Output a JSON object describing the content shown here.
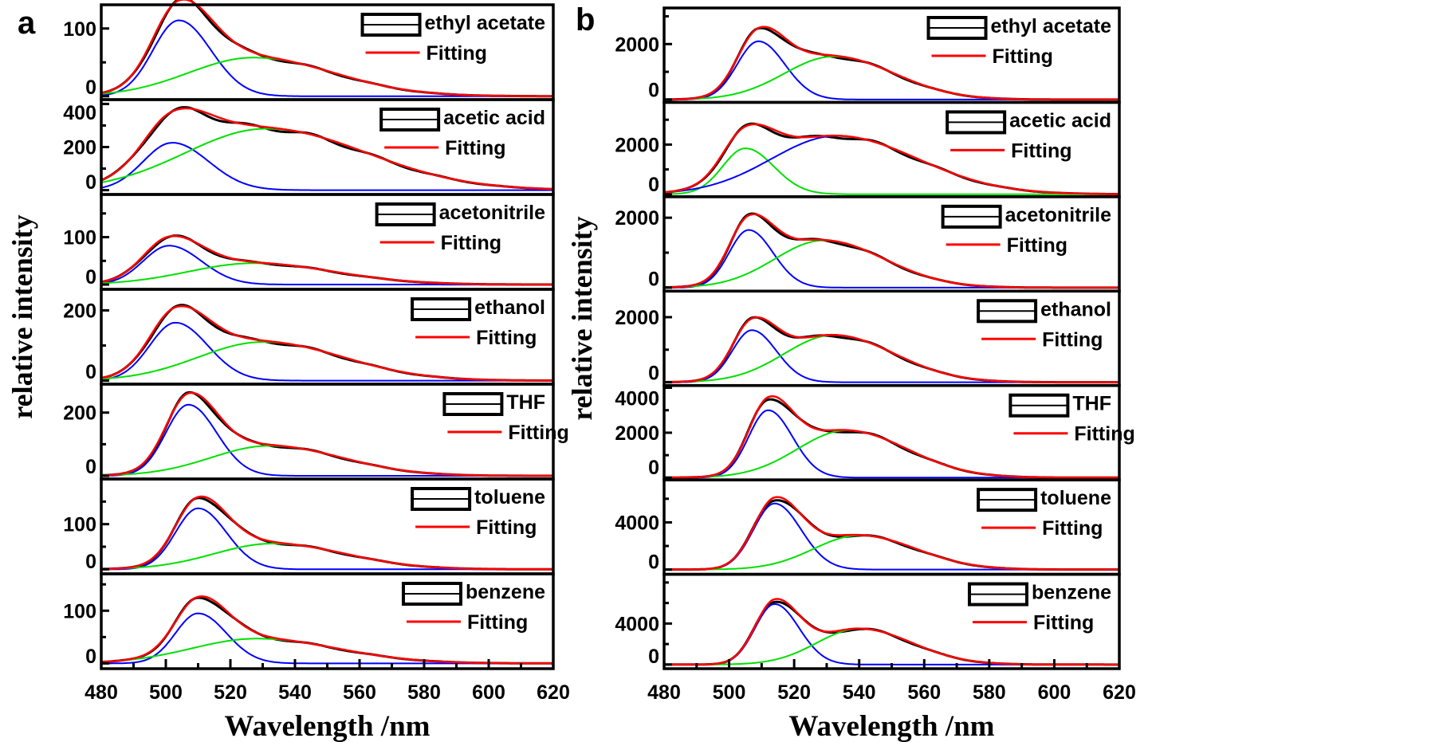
{
  "chart_data": [
    {
      "type": "line",
      "panel_label": "a",
      "xlabel": "Wavelength /nm",
      "ylabel": "relative intensity",
      "xlim": [
        480,
        620
      ],
      "xticks": [
        "480",
        "500",
        "520",
        "540",
        "560",
        "580",
        "600",
        "620"
      ],
      "colors": {
        "data": "#000000",
        "fit": "#ff0000",
        "peak1": "#0000ff",
        "peak2": "#00e000"
      },
      "fit_label": "Fitting",
      "subplots": [
        {
          "name": "ethyl acetate",
          "ylim": [
            -5,
            135
          ],
          "yticks": [
            0,
            100
          ],
          "ytick_labels": [
            "0",
            "100"
          ],
          "peak1": {
            "color": "blue",
            "center": 504,
            "amp": 112,
            "width": 8
          },
          "peak2": {
            "color": "green",
            "center": 527,
            "amp": 57,
            "width": 20
          }
        },
        {
          "name": "acetic acid",
          "ylim": [
            -20,
            420
          ],
          "yticks": [
            0,
            200,
            400
          ],
          "ytick_labels": [
            "0",
            "200",
            "400"
          ],
          "peak1": {
            "color": "blue",
            "center": 502,
            "amp": 220,
            "width": 9
          },
          "peak2": {
            "color": "green",
            "center": 531,
            "amp": 285,
            "width": 25
          }
        },
        {
          "name": "acetonitrile",
          "ylim": [
            -10,
            190
          ],
          "yticks": [
            0,
            100
          ],
          "ytick_labels": [
            "0",
            "100"
          ],
          "peak1": {
            "color": "blue",
            "center": 501,
            "amp": 82,
            "width": 8
          },
          "peak2": {
            "color": "green",
            "center": 527,
            "amp": 45,
            "width": 20
          }
        },
        {
          "name": "ethanol",
          "ylim": [
            -10,
            260
          ],
          "yticks": [
            0,
            200
          ],
          "ytick_labels": [
            "0",
            "200"
          ],
          "peak1": {
            "color": "blue",
            "center": 503,
            "amp": 165,
            "width": 8
          },
          "peak2": {
            "color": "green",
            "center": 530,
            "amp": 110,
            "width": 20
          }
        },
        {
          "name": "THF",
          "ylim": [
            -10,
            290
          ],
          "yticks": [
            0,
            200
          ],
          "ytick_labels": [
            "0",
            "200"
          ],
          "peak1": {
            "color": "blue",
            "center": 507,
            "amp": 225,
            "width": 7
          },
          "peak2": {
            "color": "green",
            "center": 532,
            "amp": 95,
            "width": 18
          }
        },
        {
          "name": "toluene",
          "ylim": [
            -10,
            200
          ],
          "yticks": [
            0,
            100
          ],
          "ytick_labels": [
            "0",
            "100"
          ],
          "peak1": {
            "color": "blue",
            "center": 510,
            "amp": 135,
            "width": 7
          },
          "peak2": {
            "color": "green",
            "center": 533,
            "amp": 57,
            "width": 18
          }
        },
        {
          "name": "benzene",
          "ylim": [
            -10,
            170
          ],
          "yticks": [
            0,
            100
          ],
          "ytick_labels": [
            "0",
            "100"
          ],
          "peak1": {
            "color": "blue",
            "center": 510,
            "amp": 95,
            "width": 7
          },
          "peak2": {
            "color": "green",
            "center": 528,
            "amp": 47,
            "width": 20
          }
        }
      ]
    },
    {
      "type": "line",
      "panel_label": "b",
      "xlabel": "Wavelength /nm",
      "ylabel": "relative intensity",
      "xlim": [
        480,
        620
      ],
      "xticks": [
        "480",
        "500",
        "520",
        "540",
        "560",
        "580",
        "600",
        "620"
      ],
      "colors": {
        "data": "#000000",
        "fit": "#ff0000",
        "peak1": "#0000ff",
        "peak2": "#00e000"
      },
      "fit_label": "Fitting",
      "subplots": [
        {
          "name": "ethyl acetate",
          "ylim": [
            -100,
            3300
          ],
          "yticks": [
            0,
            2000
          ],
          "ytick_labels": [
            "0",
            "2000"
          ],
          "peak1": {
            "color": "blue",
            "center": 509,
            "amp": 2100,
            "width": 6.5
          },
          "peak2": {
            "color": "green",
            "center": 532,
            "amp": 1550,
            "width": 15
          }
        },
        {
          "name": "acetic acid",
          "ylim": [
            -100,
            3700
          ],
          "yticks": [
            0,
            2000
          ],
          "ytick_labels": [
            "0",
            "2000"
          ],
          "peak1": {
            "color": "green",
            "center": 505,
            "amp": 1850,
            "width": 7
          },
          "peak2": {
            "color": "blue",
            "center": 533,
            "amp": 2350,
            "width": 20
          }
        },
        {
          "name": "acetonitrile",
          "ylim": [
            -100,
            2600
          ],
          "yticks": [
            0,
            2000
          ],
          "ytick_labels": [
            "0",
            "2000"
          ],
          "peak1": {
            "color": "blue",
            "center": 506,
            "amp": 1650,
            "width": 6
          },
          "peak2": {
            "color": "green",
            "center": 529,
            "amp": 1350,
            "width": 15
          }
        },
        {
          "name": "ethanol",
          "ylim": [
            -100,
            2800
          ],
          "yticks": [
            0,
            2000
          ],
          "ytick_labels": [
            "0",
            "2000"
          ],
          "peak1": {
            "color": "blue",
            "center": 507,
            "amp": 1600,
            "width": 6
          },
          "peak2": {
            "color": "green",
            "center": 532,
            "amp": 1450,
            "width": 15
          }
        },
        {
          "name": "THF",
          "ylim": [
            -100,
            4100
          ],
          "yticks": [
            0,
            2000,
            4000
          ],
          "ytick_labels": [
            "0",
            "2000",
            "4000"
          ],
          "peak1": {
            "color": "blue",
            "center": 512,
            "amp": 3000,
            "width": 6
          },
          "peak2": {
            "color": "green",
            "center": 536,
            "amp": 2100,
            "width": 15
          }
        },
        {
          "name": "toluene",
          "ylim": [
            -400,
            7600
          ],
          "yticks": [
            0,
            4000
          ],
          "ytick_labels": [
            "0",
            "4000"
          ],
          "peak1": {
            "color": "blue",
            "center": 514,
            "amp": 5600,
            "width": 6.5
          },
          "peak2": {
            "color": "green",
            "center": 540,
            "amp": 2900,
            "width": 14
          }
        },
        {
          "name": "benzene",
          "ylim": [
            -400,
            8800
          ],
          "yticks": [
            0,
            4000
          ],
          "ytick_labels": [
            "0",
            "4000"
          ],
          "peak1": {
            "color": "blue",
            "center": 514,
            "amp": 5900,
            "width": 6
          },
          "peak2": {
            "color": "green",
            "center": 540,
            "amp": 3500,
            "width": 13
          }
        }
      ]
    }
  ]
}
